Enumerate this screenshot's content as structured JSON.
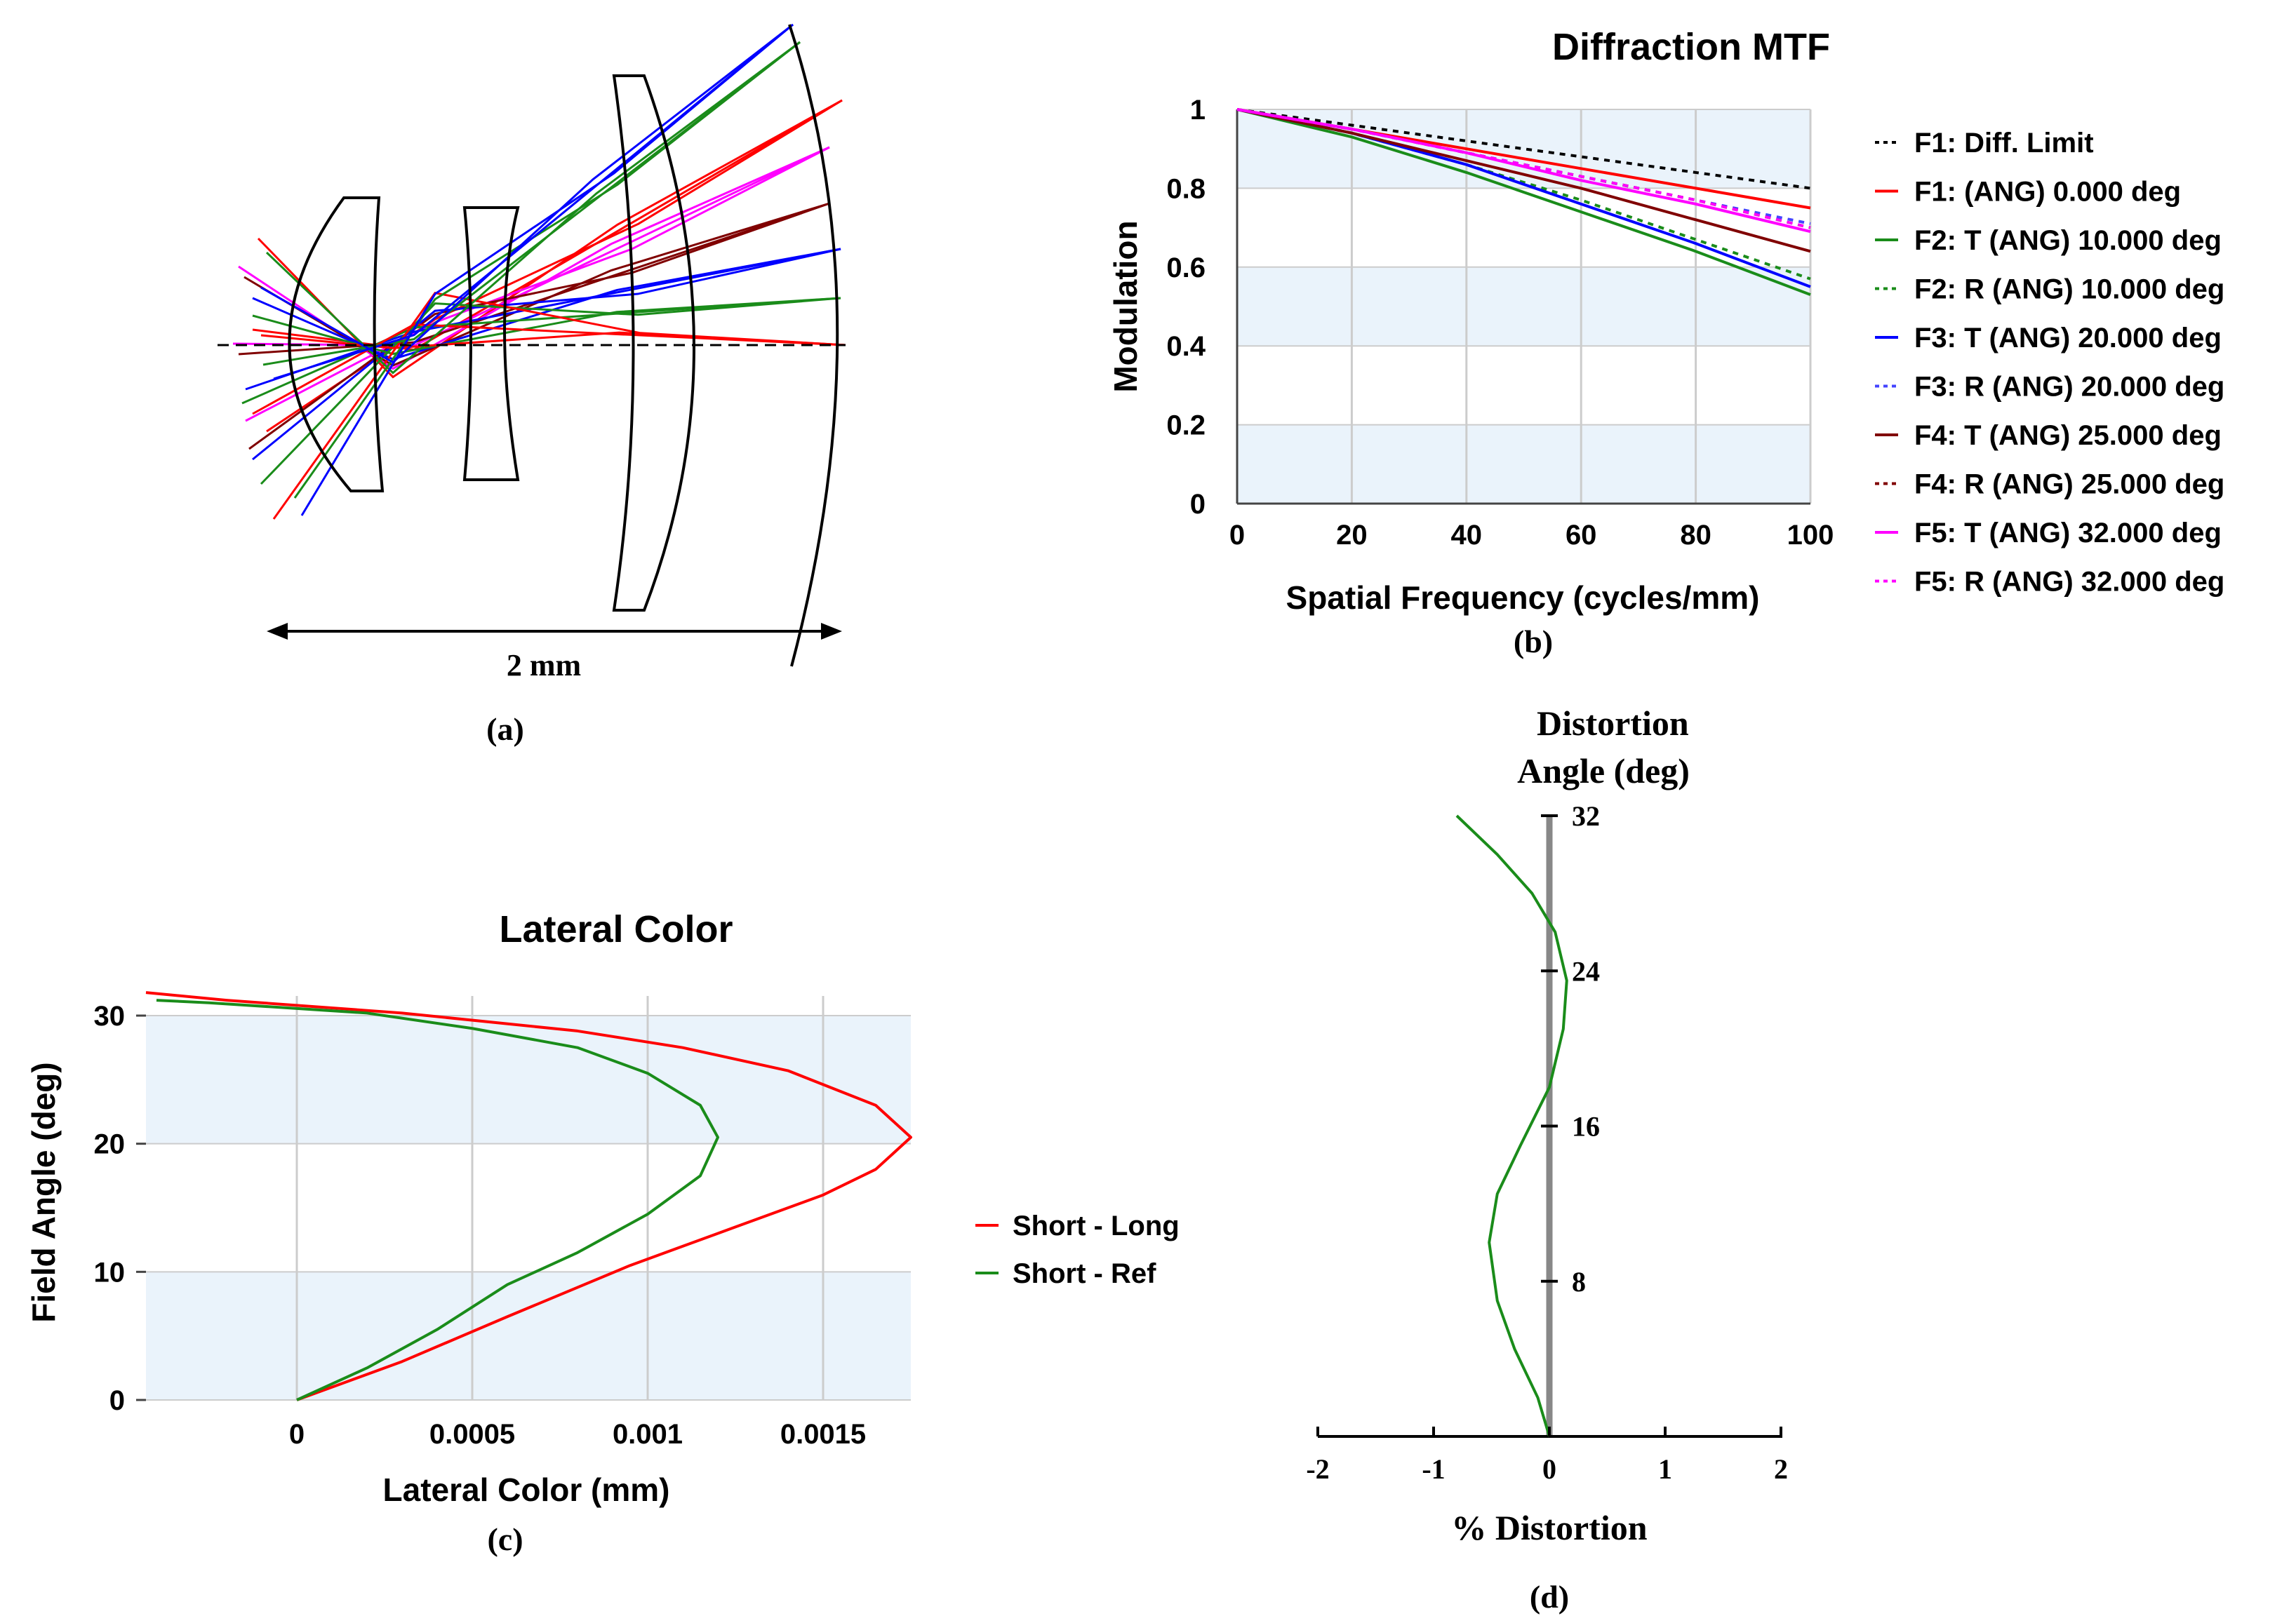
{
  "panel_labels": {
    "a": "(a)",
    "b": "(b)",
    "c": "(c)",
    "d": "(d)"
  },
  "lens_layout": {
    "scale_label": "2 mm"
  },
  "chart_data": [
    {
      "id": "mtf",
      "type": "line",
      "title": "Diffraction MTF",
      "xlabel": "Spatial Frequency (cycles/mm)",
      "ylabel": "Modulation",
      "xlim": [
        0,
        100
      ],
      "ylim": [
        0,
        1
      ],
      "xticks": [
        "0",
        "20",
        "40",
        "60",
        "80",
        "100"
      ],
      "yticks": [
        "0",
        "0.2",
        "0.4",
        "0.6",
        "0.8",
        "1"
      ],
      "x": [
        0,
        20,
        40,
        60,
        80,
        100
      ],
      "series": [
        {
          "name": "F1: Diff. Limit",
          "color": "#000000",
          "dashed": true,
          "values": [
            1.0,
            0.96,
            0.92,
            0.88,
            0.84,
            0.8
          ]
        },
        {
          "name": "F1: (ANG) 0.000 deg",
          "color": "#ff0000",
          "dashed": false,
          "values": [
            1.0,
            0.95,
            0.9,
            0.85,
            0.8,
            0.75
          ]
        },
        {
          "name": "F2: T (ANG) 10.000 deg",
          "color": "#1a8c1a",
          "dashed": false,
          "values": [
            1.0,
            0.93,
            0.84,
            0.74,
            0.64,
            0.53
          ]
        },
        {
          "name": "F2: R (ANG) 10.000 deg",
          "color": "#1a8c1a",
          "dashed": true,
          "values": [
            1.0,
            0.94,
            0.86,
            0.77,
            0.67,
            0.57
          ]
        },
        {
          "name": "F3: T (ANG) 20.000 deg",
          "color": "#0000ff",
          "dashed": false,
          "values": [
            1.0,
            0.94,
            0.86,
            0.76,
            0.66,
            0.55
          ]
        },
        {
          "name": "F3: R (ANG) 20.000 deg",
          "color": "#4444ff",
          "dashed": true,
          "values": [
            1.0,
            0.95,
            0.89,
            0.83,
            0.77,
            0.71
          ]
        },
        {
          "name": "F4: T (ANG) 25.000 deg",
          "color": "#800000",
          "dashed": false,
          "values": [
            1.0,
            0.94,
            0.87,
            0.8,
            0.72,
            0.64
          ]
        },
        {
          "name": "F4: R (ANG) 25.000 deg",
          "color": "#800000",
          "dashed": true,
          "values": [
            1.0,
            0.95,
            0.89,
            0.83,
            0.77,
            0.7
          ]
        },
        {
          "name": "F5: T (ANG) 32.000 deg",
          "color": "#ff00ff",
          "dashed": false,
          "values": [
            1.0,
            0.95,
            0.89,
            0.82,
            0.76,
            0.69
          ]
        },
        {
          "name": "F5: R (ANG) 32.000 deg",
          "color": "#ff00ff",
          "dashed": true,
          "values": [
            1.0,
            0.95,
            0.89,
            0.83,
            0.77,
            0.7
          ]
        }
      ]
    },
    {
      "id": "lateral",
      "type": "line",
      "title": "Lateral Color",
      "xlabel": "Lateral Color (mm)",
      "ylabel": "Field Angle (deg)",
      "xlim": [
        -0.00043,
        0.00175
      ],
      "ylim": [
        0,
        32
      ],
      "xticks": [
        "0",
        "0.0005",
        "0.001",
        "0.0015"
      ],
      "xtick_values": [
        0,
        0.0005,
        0.001,
        0.0015
      ],
      "yticks": [
        "0",
        "10",
        "20",
        "30"
      ],
      "ytick_values": [
        0,
        10,
        20,
        30
      ],
      "series": [
        {
          "name": "Short - Long",
          "color": "#ff0000",
          "points": [
            [
              0,
              0
            ],
            [
              0.0003,
              3
            ],
            [
              0.0006,
              6.5
            ],
            [
              0.00095,
              10.5
            ],
            [
              0.00125,
              13.5
            ],
            [
              0.0015,
              16
            ],
            [
              0.00165,
              18
            ],
            [
              0.00175,
              20.5
            ],
            [
              0.00165,
              23
            ],
            [
              0.0014,
              25.7
            ],
            [
              0.0011,
              27.5
            ],
            [
              0.0008,
              28.8
            ],
            [
              0.0003,
              30.2
            ],
            [
              -0.0002,
              31.2
            ],
            [
              -0.00043,
              31.8
            ]
          ]
        },
        {
          "name": "Short - Ref",
          "color": "#1a8c1a",
          "points": [
            [
              0,
              0
            ],
            [
              0.0002,
              2.5
            ],
            [
              0.0004,
              5.5
            ],
            [
              0.0006,
              9
            ],
            [
              0.0008,
              11.5
            ],
            [
              0.001,
              14.5
            ],
            [
              0.00115,
              17.5
            ],
            [
              0.0012,
              20.5
            ],
            [
              0.00115,
              23
            ],
            [
              0.001,
              25.5
            ],
            [
              0.0008,
              27.5
            ],
            [
              0.0005,
              29
            ],
            [
              0.0002,
              30.2
            ],
            [
              -0.00025,
              31
            ],
            [
              -0.0004,
              31.2
            ]
          ]
        }
      ]
    },
    {
      "id": "distortion",
      "type": "line",
      "title": "Distortion",
      "subtitle": "Angle (deg)",
      "xlabel": "% Distortion",
      "xlim": [
        -2,
        2
      ],
      "ylim": [
        0,
        32
      ],
      "xticks": [
        "-2",
        "-1",
        "0",
        "1",
        "2"
      ],
      "xtick_values": [
        -2,
        -1,
        0,
        1,
        2
      ],
      "yticks": [
        "8",
        "16",
        "24",
        "32"
      ],
      "ytick_values": [
        8,
        16,
        24,
        32
      ],
      "series": [
        {
          "name": "Distortion",
          "color": "#1a8c1a",
          "points": [
            [
              0,
              0
            ],
            [
              -0.1,
              2
            ],
            [
              -0.3,
              4.5
            ],
            [
              -0.45,
              7
            ],
            [
              -0.52,
              10
            ],
            [
              -0.45,
              12.5
            ],
            [
              -0.25,
              15
            ],
            [
              0,
              18
            ],
            [
              0.12,
              21
            ],
            [
              0.15,
              23.5
            ],
            [
              0.05,
              26
            ],
            [
              -0.15,
              28
            ],
            [
              -0.45,
              30
            ],
            [
              -0.8,
              32
            ]
          ]
        }
      ]
    }
  ]
}
